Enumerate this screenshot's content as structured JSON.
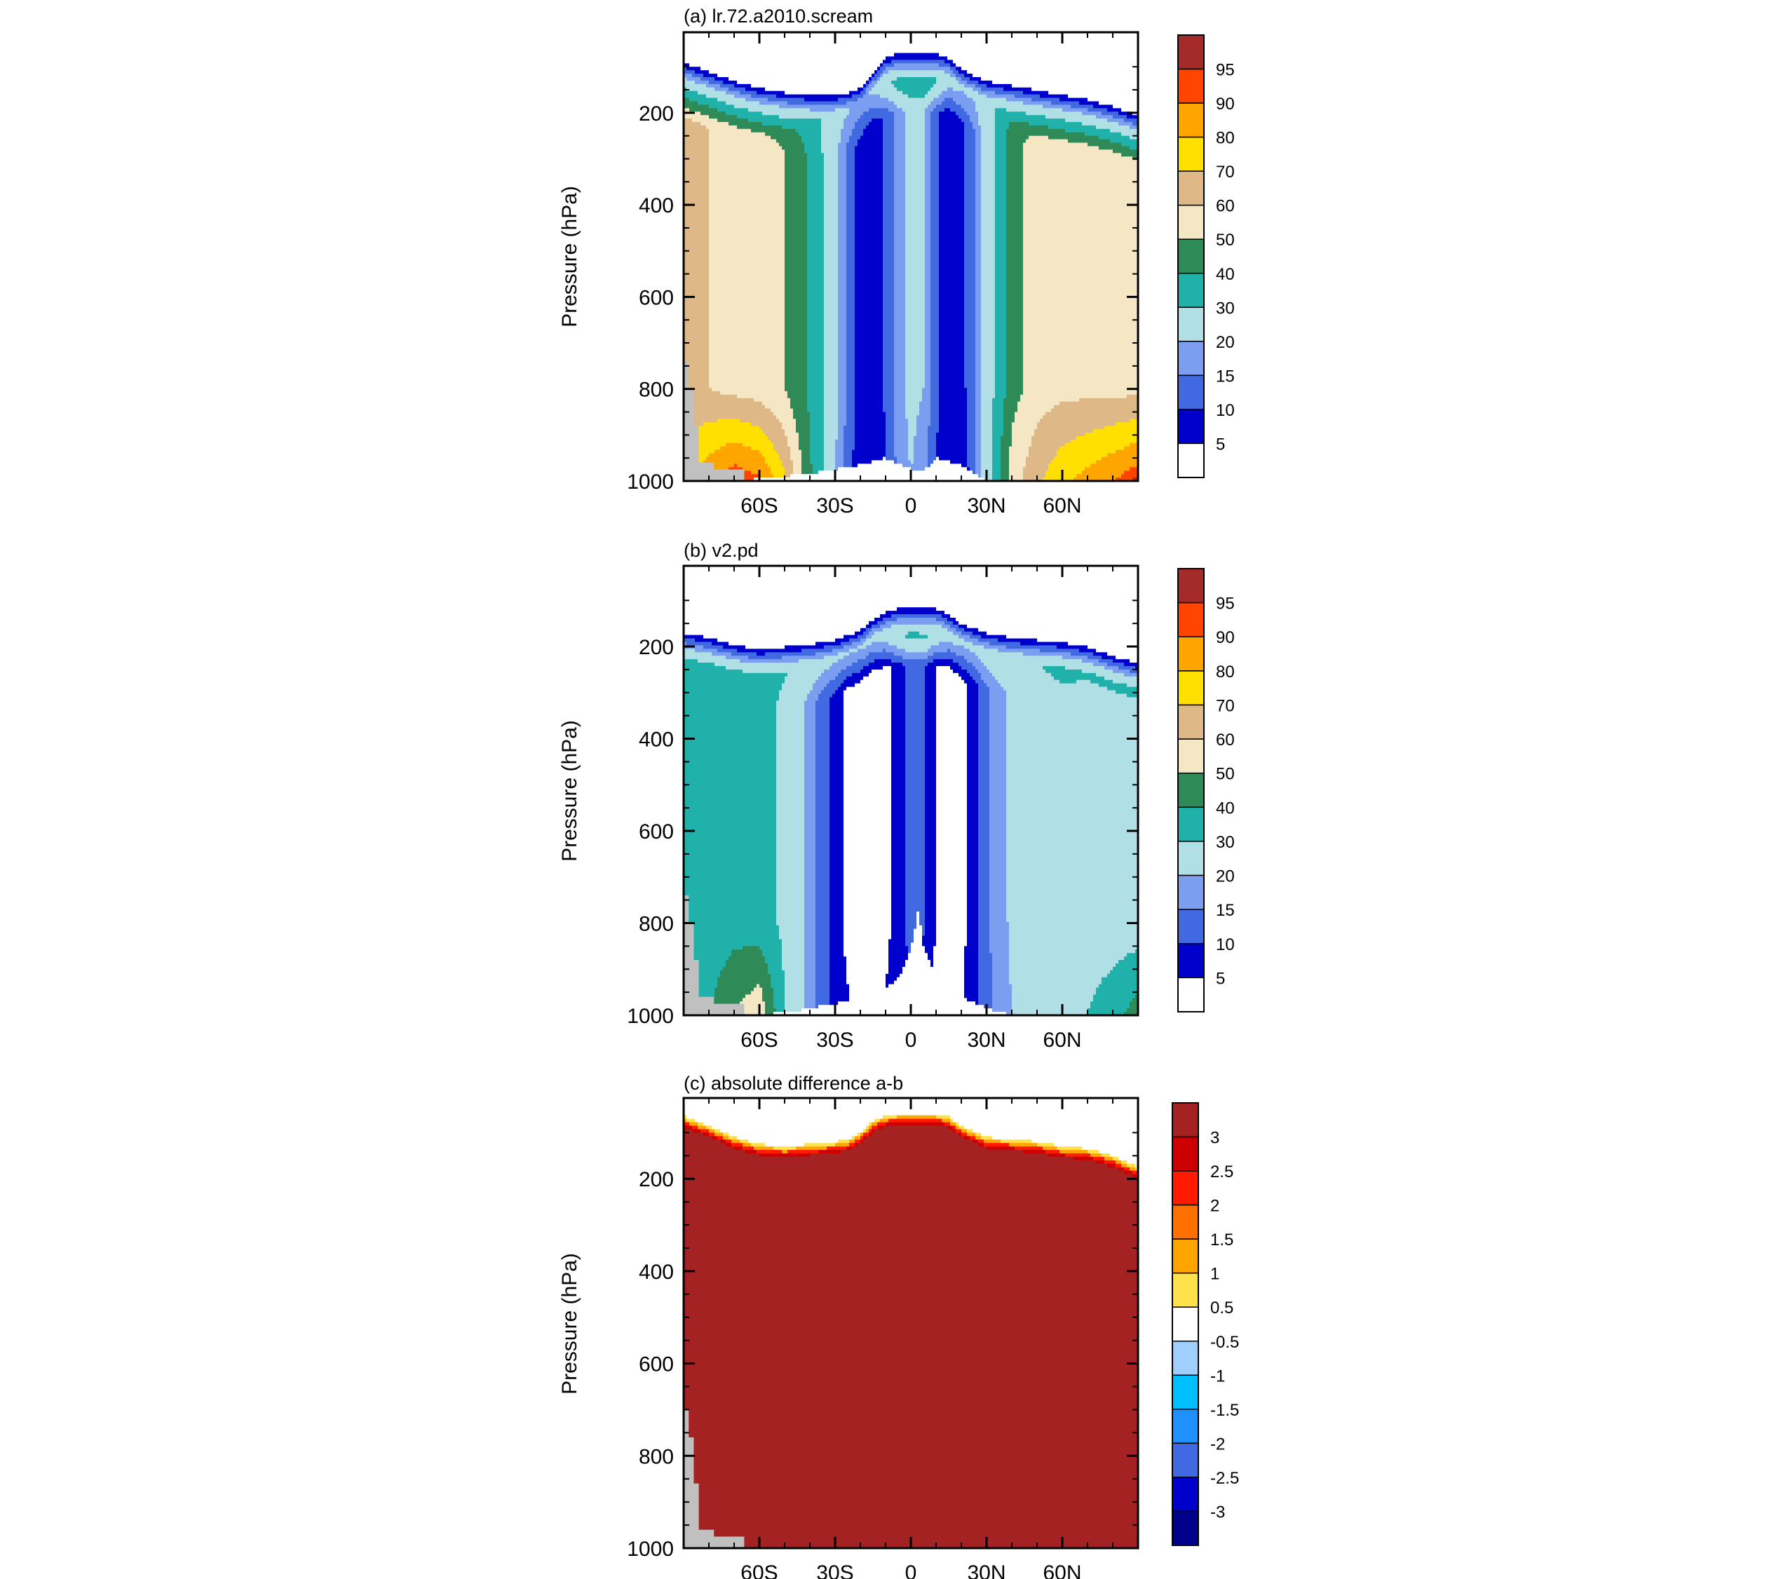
{
  "palettes": {
    "main": [
      "#ffffff",
      "#0000cd",
      "#4169e1",
      "#7b9ef0",
      "#b0e0e6",
      "#20b2aa",
      "#2e8b57",
      "#f5e6c4",
      "#deb887",
      "#ffe000",
      "#ffa500",
      "#ff4500",
      "#a52a2a"
    ],
    "diff": [
      "#00008b",
      "#0000cd",
      "#4169e1",
      "#1e90ff",
      "#00bfff",
      "#9fcfff",
      "#ffffff",
      "#ffe14d",
      "#ffa500",
      "#ff7000",
      "#ff1a00",
      "#cc0000",
      "#a52222"
    ],
    "missing": "#c0c0c0"
  },
  "chart_data": [
    {
      "type": "contour",
      "title": "(a) lr.72.a2010.scream",
      "ylabel": "Pressure (hPa)",
      "x_ticks": [
        "60S",
        "30S",
        "0",
        "30N",
        "60N"
      ],
      "x_tick_values": [
        -60,
        -30,
        0,
        30,
        60
      ],
      "y_ticks": [
        "200",
        "400",
        "600",
        "800",
        "1000"
      ],
      "y_tick_values": [
        200,
        400,
        600,
        800,
        1000
      ],
      "xlim": [
        -90,
        90
      ],
      "ylim": [
        1000,
        25
      ],
      "colorbar_labels": [
        "5",
        "10",
        "15",
        "20",
        "30",
        "40",
        "50",
        "60",
        "70",
        "80",
        "90",
        "95"
      ],
      "top_pressure": [
        [
          -90,
          85
        ],
        [
          -80,
          105
        ],
        [
          -70,
          125
        ],
        [
          -60,
          140
        ],
        [
          -50,
          150
        ],
        [
          -40,
          155
        ],
        [
          -30,
          155
        ],
        [
          -25,
          150
        ],
        [
          -20,
          140
        ],
        [
          -15,
          105
        ],
        [
          -10,
          75
        ],
        [
          -5,
          65
        ],
        [
          0,
          65
        ],
        [
          10,
          65
        ],
        [
          15,
          75
        ],
        [
          20,
          100
        ],
        [
          30,
          125
        ],
        [
          40,
          135
        ],
        [
          50,
          145
        ],
        [
          60,
          155
        ],
        [
          70,
          165
        ],
        [
          80,
          180
        ],
        [
          90,
          200
        ]
      ],
      "surface_pressure": [
        [
          -90,
          1000
        ],
        [
          -80,
          1000
        ],
        [
          -70,
          1000
        ],
        [
          -50,
          990
        ],
        [
          -40,
          985
        ],
        [
          -30,
          975
        ],
        [
          -20,
          965
        ],
        [
          -10,
          950
        ],
        [
          0,
          975
        ],
        [
          5,
          980
        ],
        [
          10,
          950
        ],
        [
          20,
          965
        ],
        [
          30,
          1000
        ],
        [
          40,
          1000
        ],
        [
          90,
          1000
        ]
      ],
      "zones": [
        {
          "lat": -90,
          "wmin": 44,
          "base": 62,
          "surf": 75
        },
        {
          "lat": -80,
          "wmin": 42,
          "base": 60,
          "surf": 88
        },
        {
          "lat": -70,
          "wmin": 40,
          "base": 57,
          "surf": 97
        },
        {
          "lat": -60,
          "wmin": 38,
          "base": 55,
          "surf": 92
        },
        {
          "lat": -50,
          "wmin": 34,
          "base": 50,
          "surf": 72
        },
        {
          "lat": -40,
          "wmin": 30,
          "base": 38,
          "surf": 42
        },
        {
          "lat": -35,
          "wmin": 28,
          "base": 30,
          "surf": 30
        },
        {
          "lat": -30,
          "wmin": 25,
          "base": 22,
          "surf": 20
        },
        {
          "lat": -25,
          "wmin": 24,
          "base": 14,
          "surf": 12
        },
        {
          "lat": -20,
          "wmin": 22,
          "base": 8,
          "surf": 6
        },
        {
          "lat": -15,
          "wmin": 30,
          "base": 6,
          "surf": 5
        },
        {
          "lat": -10,
          "wmin": 40,
          "base": 11,
          "surf": 9
        },
        {
          "lat": -5,
          "wmin": 52,
          "base": 18,
          "surf": 16
        },
        {
          "lat": 0,
          "wmin": 62,
          "base": 22,
          "surf": 20
        },
        {
          "lat": 5,
          "wmin": 62,
          "base": 20,
          "surf": 16
        },
        {
          "lat": 10,
          "wmin": 48,
          "base": 12,
          "surf": 9
        },
        {
          "lat": 15,
          "wmin": 36,
          "base": 6,
          "surf": 5
        },
        {
          "lat": 20,
          "wmin": 28,
          "base": 8,
          "surf": 7
        },
        {
          "lat": 25,
          "wmin": 26,
          "base": 14,
          "surf": 12
        },
        {
          "lat": 30,
          "wmin": 28,
          "base": 24,
          "surf": 25
        },
        {
          "lat": 35,
          "wmin": 30,
          "base": 34,
          "surf": 40
        },
        {
          "lat": 40,
          "wmin": 33,
          "base": 46,
          "surf": 55
        },
        {
          "lat": 50,
          "wmin": 37,
          "base": 55,
          "surf": 68
        },
        {
          "lat": 60,
          "wmin": 40,
          "base": 57,
          "surf": 78
        },
        {
          "lat": 70,
          "wmin": 41,
          "base": 57,
          "surf": 84
        },
        {
          "lat": 80,
          "wmin": 42,
          "base": 57,
          "surf": 90
        },
        {
          "lat": 90,
          "wmin": 43,
          "base": 57,
          "surf": 97
        }
      ]
    },
    {
      "type": "contour",
      "title": "(b) v2.pd",
      "ylabel": "Pressure (hPa)",
      "x_ticks": [
        "60S",
        "30S",
        "0",
        "30N",
        "60N"
      ],
      "x_tick_values": [
        -60,
        -30,
        0,
        30,
        60
      ],
      "y_ticks": [
        "200",
        "400",
        "600",
        "800",
        "1000"
      ],
      "y_tick_values": [
        200,
        400,
        600,
        800,
        1000
      ],
      "xlim": [
        -90,
        90
      ],
      "ylim": [
        1000,
        25
      ],
      "colorbar_labels": [
        "5",
        "10",
        "15",
        "20",
        "30",
        "40",
        "50",
        "60",
        "70",
        "80",
        "90",
        "95"
      ],
      "top_pressure": [
        [
          -90,
          165
        ],
        [
          -80,
          175
        ],
        [
          -70,
          190
        ],
        [
          -60,
          200
        ],
        [
          -50,
          195
        ],
        [
          -40,
          190
        ],
        [
          -30,
          180
        ],
        [
          -20,
          160
        ],
        [
          -15,
          135
        ],
        [
          -10,
          120
        ],
        [
          -5,
          112
        ],
        [
          0,
          110
        ],
        [
          10,
          112
        ],
        [
          15,
          125
        ],
        [
          20,
          145
        ],
        [
          30,
          165
        ],
        [
          40,
          175
        ],
        [
          50,
          180
        ],
        [
          60,
          185
        ],
        [
          70,
          195
        ],
        [
          80,
          215
        ],
        [
          90,
          230
        ]
      ],
      "surface_pressure": [
        [
          -90,
          1000
        ],
        [
          -60,
          1000
        ],
        [
          -45,
          990
        ],
        [
          -30,
          975
        ],
        [
          -20,
          960
        ],
        [
          -10,
          940
        ],
        [
          -5,
          920
        ],
        [
          0,
          860
        ],
        [
          3,
          770
        ],
        [
          5,
          850
        ],
        [
          10,
          920
        ],
        [
          20,
          960
        ],
        [
          30,
          985
        ],
        [
          40,
          1000
        ],
        [
          90,
          1000
        ]
      ],
      "zones": [
        {
          "lat": -90,
          "wmin": 42,
          "base": 30,
          "surf": 34
        },
        {
          "lat": -80,
          "wmin": 40,
          "base": 33,
          "surf": 40
        },
        {
          "lat": -70,
          "wmin": 38,
          "base": 36,
          "surf": 50
        },
        {
          "lat": -60,
          "wmin": 36,
          "base": 34,
          "surf": 58
        },
        {
          "lat": -50,
          "wmin": 33,
          "base": 28,
          "surf": 30
        },
        {
          "lat": -40,
          "wmin": 31,
          "base": 18,
          "surf": 18
        },
        {
          "lat": -35,
          "wmin": 30,
          "base": 12,
          "surf": 12
        },
        {
          "lat": -30,
          "wmin": 29,
          "base": 8,
          "surf": 8
        },
        {
          "lat": -25,
          "wmin": 30,
          "base": 3,
          "surf": 6
        },
        {
          "lat": -20,
          "wmin": 30,
          "base": 2,
          "surf": 4
        },
        {
          "lat": -15,
          "wmin": 34,
          "base": 2,
          "surf": 4
        },
        {
          "lat": -10,
          "wmin": 40,
          "base": 3,
          "surf": 6
        },
        {
          "lat": -5,
          "wmin": 48,
          "base": 8,
          "surf": 8
        },
        {
          "lat": 0,
          "wmin": 54,
          "base": 12,
          "surf": 8
        },
        {
          "lat": 5,
          "wmin": 54,
          "base": 11,
          "surf": 4
        },
        {
          "lat": 10,
          "wmin": 46,
          "base": 5,
          "surf": 3
        },
        {
          "lat": 15,
          "wmin": 38,
          "base": 2,
          "surf": 3
        },
        {
          "lat": 20,
          "wmin": 32,
          "base": 3,
          "surf": 5
        },
        {
          "lat": 25,
          "wmin": 30,
          "base": 8,
          "surf": 8
        },
        {
          "lat": 30,
          "wmin": 30,
          "base": 14,
          "surf": 13
        },
        {
          "lat": 35,
          "wmin": 31,
          "base": 18,
          "surf": 17
        },
        {
          "lat": 40,
          "wmin": 32,
          "base": 21,
          "surf": 20
        },
        {
          "lat": 50,
          "wmin": 34,
          "base": 25,
          "surf": 25
        },
        {
          "lat": 60,
          "wmin": 36,
          "base": 28,
          "surf": 30
        },
        {
          "lat": 70,
          "wmin": 38,
          "base": 25,
          "surf": 30
        },
        {
          "lat": 80,
          "wmin": 40,
          "base": 24,
          "surf": 36
        },
        {
          "lat": 90,
          "wmin": 41,
          "base": 24,
          "surf": 45
        }
      ]
    },
    {
      "type": "contour",
      "title": "(c) absolute difference a-b",
      "ylabel": "Pressure (hPa)",
      "x_ticks": [
        "60S",
        "30S",
        "0",
        "30N",
        "60N"
      ],
      "x_tick_values": [
        -60,
        -30,
        0,
        30,
        60
      ],
      "y_ticks": [
        "200",
        "400",
        "600",
        "800",
        "1000"
      ],
      "y_tick_values": [
        200,
        400,
        600,
        800,
        1000
      ],
      "xlim": [
        -90,
        90
      ],
      "ylim": [
        1000,
        25
      ],
      "colorbar_labels": [
        "-3",
        "-2.5",
        "-2",
        "-1.5",
        "-1",
        "-0.5",
        "0.5",
        "1",
        "1.5",
        "2",
        "2.5",
        "3"
      ],
      "top_pressure": [
        [
          -90,
          65
        ],
        [
          -80,
          85
        ],
        [
          -70,
          110
        ],
        [
          -60,
          125
        ],
        [
          -50,
          130
        ],
        [
          -40,
          125
        ],
        [
          -30,
          120
        ],
        [
          -25,
          115
        ],
        [
          -20,
          100
        ],
        [
          -15,
          75
        ],
        [
          -10,
          62
        ],
        [
          -5,
          60
        ],
        [
          0,
          60
        ],
        [
          10,
          60
        ],
        [
          15,
          65
        ],
        [
          20,
          85
        ],
        [
          30,
          110
        ],
        [
          40,
          115
        ],
        [
          50,
          120
        ],
        [
          60,
          130
        ],
        [
          70,
          135
        ],
        [
          80,
          150
        ],
        [
          90,
          175
        ]
      ]
    }
  ]
}
